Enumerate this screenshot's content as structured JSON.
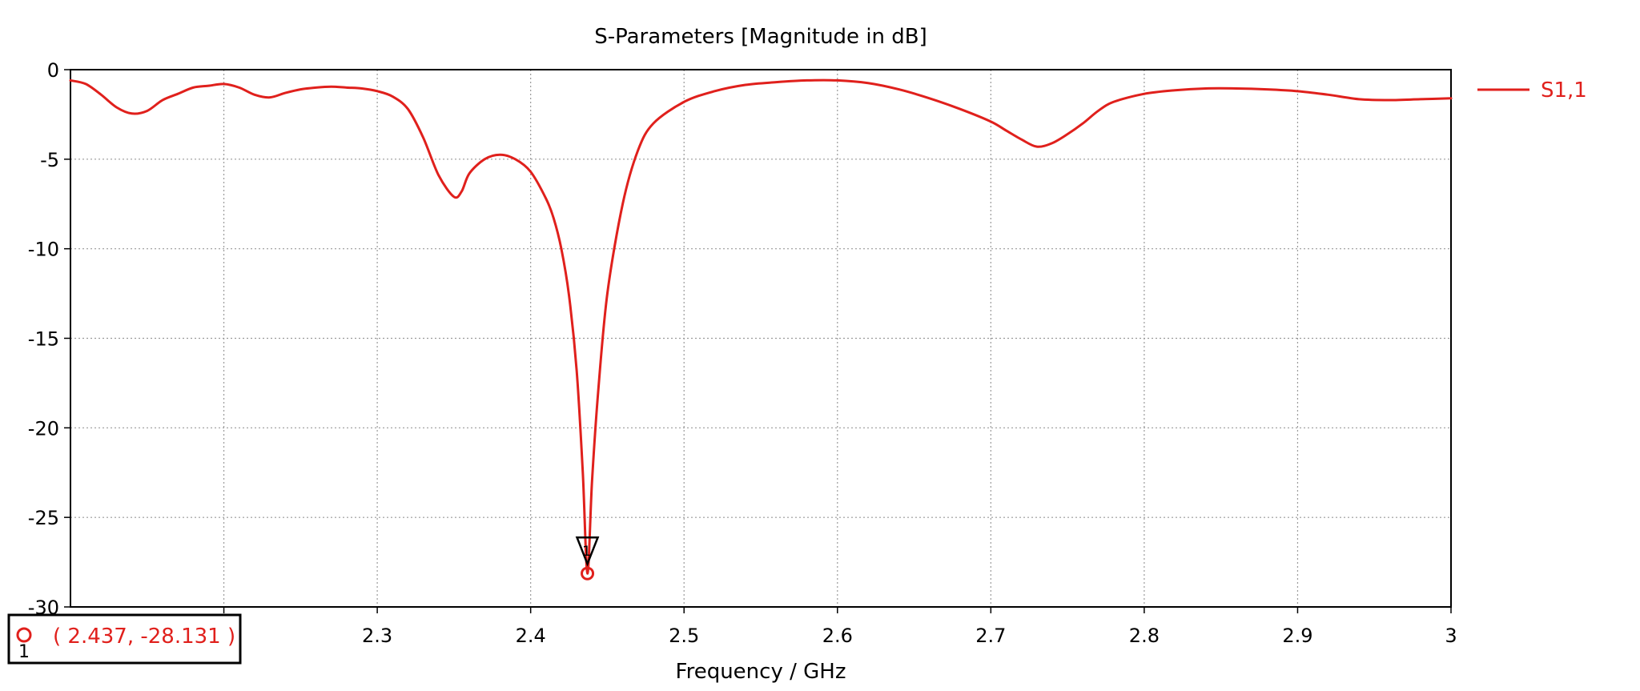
{
  "chart_data": {
    "type": "line",
    "title": "S-Parameters [Magnitude in dB]",
    "xlabel": "Frequency / GHz",
    "ylabel": "",
    "xlim": [
      2.1,
      3.0
    ],
    "ylim": [
      -30,
      0
    ],
    "x_ticks": [
      "2.2",
      "2.3",
      "2.4",
      "2.5",
      "2.6",
      "2.7",
      "2.8",
      "2.9",
      "3"
    ],
    "y_ticks": [
      "0",
      "-5",
      "-10",
      "-15",
      "-20",
      "-25",
      "-30"
    ],
    "grid": true,
    "legend_position": "right",
    "colors": {
      "series": "#e0201c",
      "grid": "#9a9a9a",
      "axes": "#000000",
      "marker_triangle": "#000000"
    },
    "series": [
      {
        "name": "S1,1",
        "color": "#e0201c",
        "points": [
          [
            2.1,
            -0.6
          ],
          [
            2.11,
            -0.8
          ],
          [
            2.12,
            -1.4
          ],
          [
            2.13,
            -2.1
          ],
          [
            2.14,
            -2.45
          ],
          [
            2.15,
            -2.3
          ],
          [
            2.16,
            -1.7
          ],
          [
            2.17,
            -1.35
          ],
          [
            2.18,
            -1.0
          ],
          [
            2.19,
            -0.9
          ],
          [
            2.2,
            -0.8
          ],
          [
            2.21,
            -1.0
          ],
          [
            2.22,
            -1.4
          ],
          [
            2.23,
            -1.55
          ],
          [
            2.24,
            -1.3
          ],
          [
            2.25,
            -1.1
          ],
          [
            2.26,
            -1.0
          ],
          [
            2.27,
            -0.95
          ],
          [
            2.28,
            -1.0
          ],
          [
            2.29,
            -1.05
          ],
          [
            2.3,
            -1.2
          ],
          [
            2.31,
            -1.5
          ],
          [
            2.32,
            -2.2
          ],
          [
            2.33,
            -3.8
          ],
          [
            2.34,
            -5.9
          ],
          [
            2.35,
            -7.1
          ],
          [
            2.355,
            -6.8
          ],
          [
            2.36,
            -5.8
          ],
          [
            2.37,
            -5.0
          ],
          [
            2.38,
            -4.75
          ],
          [
            2.39,
            -5.0
          ],
          [
            2.4,
            -5.7
          ],
          [
            2.41,
            -7.2
          ],
          [
            2.415,
            -8.3
          ],
          [
            2.42,
            -10.0
          ],
          [
            2.425,
            -12.6
          ],
          [
            2.43,
            -16.8
          ],
          [
            2.434,
            -22.5
          ],
          [
            2.437,
            -28.131
          ],
          [
            2.44,
            -23.0
          ],
          [
            2.444,
            -18.0
          ],
          [
            2.45,
            -12.5
          ],
          [
            2.46,
            -7.5
          ],
          [
            2.47,
            -4.5
          ],
          [
            2.48,
            -3.0
          ],
          [
            2.5,
            -1.8
          ],
          [
            2.52,
            -1.2
          ],
          [
            2.54,
            -0.85
          ],
          [
            2.56,
            -0.7
          ],
          [
            2.58,
            -0.6
          ],
          [
            2.6,
            -0.6
          ],
          [
            2.62,
            -0.75
          ],
          [
            2.64,
            -1.1
          ],
          [
            2.66,
            -1.6
          ],
          [
            2.68,
            -2.2
          ],
          [
            2.7,
            -2.9
          ],
          [
            2.71,
            -3.4
          ],
          [
            2.72,
            -3.9
          ],
          [
            2.73,
            -4.3
          ],
          [
            2.74,
            -4.1
          ],
          [
            2.75,
            -3.6
          ],
          [
            2.76,
            -3.0
          ],
          [
            2.77,
            -2.3
          ],
          [
            2.78,
            -1.8
          ],
          [
            2.8,
            -1.35
          ],
          [
            2.82,
            -1.15
          ],
          [
            2.84,
            -1.05
          ],
          [
            2.86,
            -1.05
          ],
          [
            2.88,
            -1.1
          ],
          [
            2.9,
            -1.2
          ],
          [
            2.92,
            -1.4
          ],
          [
            2.94,
            -1.65
          ],
          [
            2.96,
            -1.7
          ],
          [
            2.98,
            -1.65
          ],
          [
            3.0,
            -1.6
          ]
        ]
      }
    ],
    "marker": {
      "index": "1",
      "x": 2.437,
      "y": -28.131,
      "readout": "( 2.437, -28.131 )"
    }
  }
}
